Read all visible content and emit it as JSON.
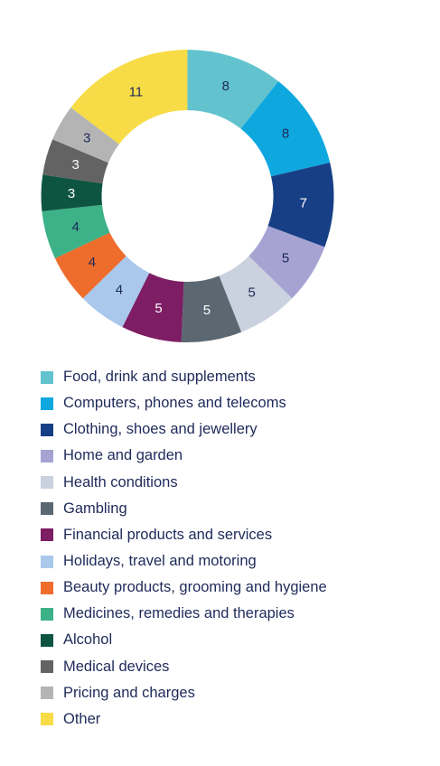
{
  "chart_data": {
    "type": "pie",
    "title": "",
    "legend_position": "bottom",
    "categories": [
      "Food, drink and supplements",
      "Computers, phones and telecoms",
      "Clothing, shoes and jewellery",
      "Home and garden",
      "Health conditions",
      "Gambling",
      "Financial products and services",
      "Holidays, travel and motoring",
      "Beauty products, grooming and hygiene",
      "Medicines, remedies and therapies",
      "Alcohol",
      "Medical devices",
      "Pricing and charges",
      "Other"
    ],
    "values": [
      8,
      8,
      7,
      5,
      5,
      5,
      5,
      4,
      4,
      4,
      3,
      3,
      3,
      11
    ],
    "colors": [
      "#62c3cf",
      "#0ea8df",
      "#173f86",
      "#a6a3d3",
      "#c9d2de",
      "#5b6872",
      "#7d1d64",
      "#a9c8ec",
      "#ee6d2d",
      "#3db187",
      "#0e5541",
      "#636363",
      "#b4b4b4",
      "#f7dc47"
    ],
    "label_colors": [
      "#1e2a5a",
      "#1e2a5a",
      "#ffffff",
      "#1e2a5a",
      "#1e2a5a",
      "#ffffff",
      "#ffffff",
      "#1e2a5a",
      "#1e2a5a",
      "#1e2a5a",
      "#ffffff",
      "#ffffff",
      "#1e2a5a",
      "#1e2a5a"
    ]
  }
}
